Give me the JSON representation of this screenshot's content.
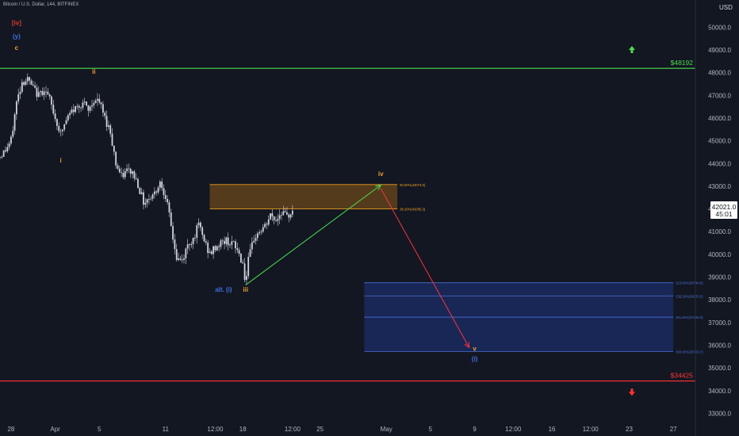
{
  "header": {
    "symbol_line": "Bitcoin / U.S. Dollar, 144, BITFINEX",
    "currency": "USD"
  },
  "colors": {
    "background": "#131722",
    "candle": "#d1d4dc",
    "resistance": "#4cdd4c",
    "support": "#ff3333",
    "wave_orange": "#f0a020",
    "wave_blue": "#3f6fe0",
    "wave_red": "#e03a2a",
    "zone_orange": "#8a5a18",
    "zone_blue": "#1c2e6a",
    "projection_up": "#4cdd4c",
    "projection_down": "#ff3333"
  },
  "chart_data": {
    "type": "candlestick",
    "y_axis": {
      "min": 32700,
      "max": 51200,
      "ticks": [
        33000,
        34000,
        35000,
        36000,
        37000,
        38000,
        39000,
        40000,
        41000,
        42000,
        43000,
        44000,
        45000,
        46000,
        47000,
        48000,
        49000,
        50000
      ],
      "tick_labels": [
        "33000.0",
        "34000.0",
        "35000.0",
        "36000.0",
        "37000.0",
        "38000.0",
        "39000.0",
        "40000.0",
        "41000.0",
        "42000.0",
        "43000.0",
        "44000.0",
        "45000.0",
        "46000.0",
        "47000.0",
        "48000.0",
        "49000.0",
        "50000.0"
      ]
    },
    "x_axis": {
      "start": "2022-03-27",
      "end": "2022-05-29",
      "ticks": [
        {
          "x": "2022-03-28",
          "label": "28"
        },
        {
          "x": "2022-04-01",
          "label": "Apr"
        },
        {
          "x": "2022-04-05",
          "label": "5"
        },
        {
          "x": "2022-04-11",
          "label": "11"
        },
        {
          "x": "2022-04-15T12:00",
          "label": "12:00"
        },
        {
          "x": "2022-04-18",
          "label": "18"
        },
        {
          "x": "2022-04-22T12:00",
          "label": "12:00"
        },
        {
          "x": "2022-04-25",
          "label": "25"
        },
        {
          "x": "2022-05-01",
          "label": "May"
        },
        {
          "x": "2022-05-05",
          "label": "5"
        },
        {
          "x": "2022-05-09",
          "label": "9"
        },
        {
          "x": "2022-05-12T12:00",
          "label": "12:00"
        },
        {
          "x": "2022-05-16",
          "label": "16"
        },
        {
          "x": "2022-05-19T12:00",
          "label": "12:00"
        },
        {
          "x": "2022-05-23",
          "label": "23"
        },
        {
          "x": "2022-05-27",
          "label": "27"
        }
      ]
    },
    "price_path": [
      [
        "2022-03-27T00:00",
        44300
      ],
      [
        "2022-03-27T12:00",
        44600
      ],
      [
        "2022-03-28T00:00",
        45000
      ],
      [
        "2022-03-28T12:00",
        46700
      ],
      [
        "2022-03-29T00:00",
        47600
      ],
      [
        "2022-03-29T12:00",
        47700
      ],
      [
        "2022-03-30T00:00",
        47300
      ],
      [
        "2022-03-30T12:00",
        47000
      ],
      [
        "2022-03-31T00:00",
        47300
      ],
      [
        "2022-03-31T12:00",
        46800
      ],
      [
        "2022-04-01T00:00",
        46000
      ],
      [
        "2022-04-01T12:00",
        45300
      ],
      [
        "2022-04-02T00:00",
        45900
      ],
      [
        "2022-04-02T12:00",
        46300
      ],
      [
        "2022-04-03T00:00",
        46500
      ],
      [
        "2022-04-03T12:00",
        46700
      ],
      [
        "2022-04-04T00:00",
        46300
      ],
      [
        "2022-04-04T12:00",
        46800
      ],
      [
        "2022-04-05T00:00",
        46700
      ],
      [
        "2022-04-05T12:00",
        46000
      ],
      [
        "2022-04-06T00:00",
        45400
      ],
      [
        "2022-04-06T12:00",
        44000
      ],
      [
        "2022-04-07T00:00",
        43400
      ],
      [
        "2022-04-07T12:00",
        43700
      ],
      [
        "2022-04-08T00:00",
        43600
      ],
      [
        "2022-04-08T12:00",
        43100
      ],
      [
        "2022-04-09T00:00",
        42300
      ],
      [
        "2022-04-09T12:00",
        42500
      ],
      [
        "2022-04-10T00:00",
        42700
      ],
      [
        "2022-04-10T12:00",
        43200
      ],
      [
        "2022-04-11T00:00",
        42600
      ],
      [
        "2022-04-11T12:00",
        41200
      ],
      [
        "2022-04-12T00:00",
        39800
      ],
      [
        "2022-04-12T12:00",
        39700
      ],
      [
        "2022-04-13T00:00",
        40400
      ],
      [
        "2022-04-13T12:00",
        40700
      ],
      [
        "2022-04-14T00:00",
        41300
      ],
      [
        "2022-04-14T12:00",
        40600
      ],
      [
        "2022-04-15T00:00",
        40000
      ],
      [
        "2022-04-15T12:00",
        40300
      ],
      [
        "2022-04-16T00:00",
        40500
      ],
      [
        "2022-04-16T12:00",
        40600
      ],
      [
        "2022-04-17T00:00",
        40500
      ],
      [
        "2022-04-17T12:00",
        40200
      ],
      [
        "2022-04-18T00:00",
        39600
      ],
      [
        "2022-04-18T06:00",
        38700
      ],
      [
        "2022-04-18T12:00",
        39700
      ],
      [
        "2022-04-19T00:00",
        40700
      ],
      [
        "2022-04-19T12:00",
        41000
      ],
      [
        "2022-04-20T00:00",
        41200
      ],
      [
        "2022-04-20T12:00",
        41700
      ],
      [
        "2022-04-21T00:00",
        41500
      ],
      [
        "2022-04-21T12:00",
        41900
      ],
      [
        "2022-04-22T00:00",
        41600
      ],
      [
        "2022-04-22T12:00",
        42021
      ]
    ],
    "last_price": {
      "label": "42021.0",
      "countdown": "45:01",
      "value": 42021
    },
    "horizontal_levels": [
      {
        "name": "resistance",
        "value": 48192,
        "label": "$48192",
        "color": "#4cdd4c"
      },
      {
        "name": "support",
        "value": 34425,
        "label": "$34425",
        "color": "#ff3333"
      }
    ],
    "fib_zone_upper": {
      "x_start": "2022-04-15",
      "x_end": "2022-05-02",
      "levels": [
        {
          "value": 43073.5,
          "label": "50.00%(43073.5)"
        },
        {
          "value": 42005.3,
          "label": "38.20%(42005.3)"
        }
      ]
    },
    "fib_zone_lower": {
      "x_start": "2022-04-29",
      "x_end": "2022-05-27",
      "levels": [
        {
          "value": 38748.9,
          "label": "223.60%(38748.9)"
        },
        {
          "value": 38170.6,
          "label": "238.20%(38170.6)"
        },
        {
          "value": 37235.8,
          "label": "261.80%(37235.8)"
        },
        {
          "value": 35723.7,
          "label": "300.00%(35723.7)"
        }
      ]
    },
    "projection_arrows": [
      {
        "from": [
          "2022-04-18T06:00",
          38650
        ],
        "to": [
          "2022-04-30T12:00",
          43050
        ],
        "color": "#4cdd4c"
      },
      {
        "from": [
          "2022-04-30T12:00",
          42900
        ],
        "to": [
          "2022-05-08T12:00",
          35900
        ],
        "color": "#ff3333"
      }
    ],
    "direction_markers": [
      {
        "at": [
          "2022-05-23T06:00",
          49000
        ],
        "dir": "up",
        "color": "#4cdd4c"
      },
      {
        "at": [
          "2022-05-23T06:00",
          33950
        ],
        "dir": "down",
        "color": "#ff3333"
      }
    ],
    "wave_labels": [
      {
        "text": "[iv]",
        "at": [
          "2022-03-28T12:00",
          50100
        ],
        "color": "#e03a2a"
      },
      {
        "text": "(y)",
        "at": [
          "2022-03-28T12:00",
          49500
        ],
        "color": "#3f6fe0"
      },
      {
        "text": "c",
        "at": [
          "2022-03-28T12:00",
          49000
        ],
        "color": "#f0a020"
      },
      {
        "text": "ii",
        "at": [
          "2022-04-04T12:00",
          47950
        ],
        "color": "#f0a020"
      },
      {
        "text": "i",
        "at": [
          "2022-04-01T12:00",
          44050
        ],
        "color": "#f0a020"
      },
      {
        "text": "alt. (i)",
        "at": [
          "2022-04-16T06:00",
          38350
        ],
        "color": "#3f6fe0"
      },
      {
        "text": "iii",
        "at": [
          "2022-04-18T06:00",
          38350
        ],
        "color": "#f0a020"
      },
      {
        "text": "iv",
        "at": [
          "2022-04-30T12:00",
          43450
        ],
        "color": "#f0a020"
      },
      {
        "text": "v",
        "at": [
          "2022-05-09T00:00",
          35750
        ],
        "color": "#f0a020"
      },
      {
        "text": "(i)",
        "at": [
          "2022-05-09T00:00",
          35300
        ],
        "color": "#3f6fe0"
      }
    ]
  }
}
